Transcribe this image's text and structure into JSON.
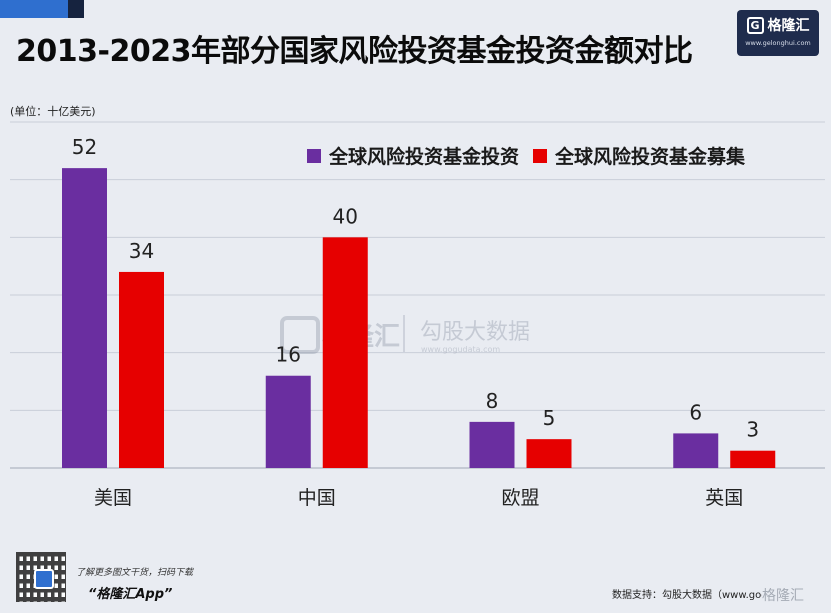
{
  "header": {
    "title": "2013-2023年部分国家风险投资基金投资金额对比",
    "logo_g": "G",
    "logo_name": "格隆汇",
    "logo_url": "www.gelonghui.com"
  },
  "chart_data": {
    "type": "bar",
    "title": "2013-2023年部分国家风险投资基金投资金额对比",
    "unit_label": "(单位：十亿美元)",
    "categories": [
      "美国",
      "中国",
      "欧盟",
      "英国"
    ],
    "series": [
      {
        "name": "全球风险投资基金投资",
        "color": "#6a2ea0",
        "values": [
          52,
          16,
          8,
          6
        ]
      },
      {
        "name": "全球风险投资基金募集",
        "color": "#e60000",
        "values": [
          34,
          40,
          5,
          3
        ]
      }
    ],
    "ylim": [
      0,
      60
    ],
    "grid": true,
    "legend": "top-right"
  },
  "watermark": {
    "left": "格隆汇",
    "right": "勾股大数据",
    "url": "www.gogudata.com"
  },
  "footer": {
    "tip": "了解更多图文干货，扫码下载",
    "app": "“格隆汇App”",
    "source": "数据支持：勾股大数据（www.gogudata.com）",
    "wm": "格隆汇"
  }
}
